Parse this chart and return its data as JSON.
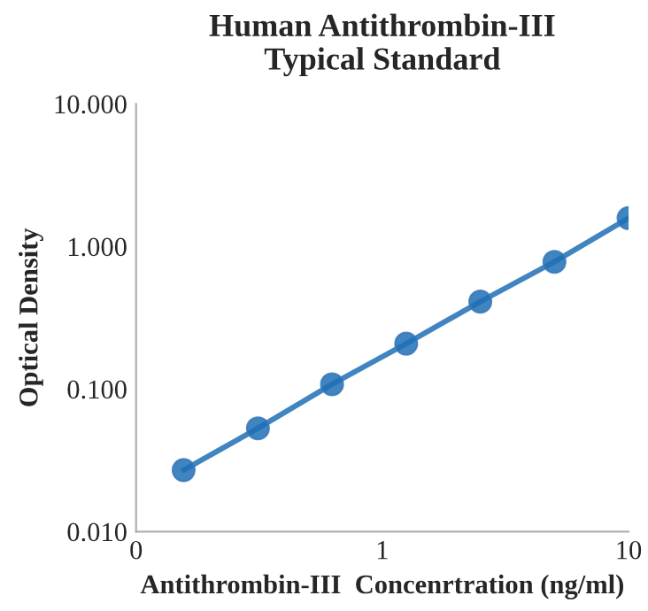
{
  "chart_data": {
    "type": "line",
    "title": "Human Antithrombin-III\nTypical Standard",
    "xlabel": "Antithrombin-III  Concenrtration (ng/ml)",
    "ylabel": "Optical Density",
    "x": [
      0.156,
      0.3125,
      0.625,
      1.25,
      2.5,
      5,
      10
    ],
    "series": [
      {
        "color": "#1f6fb5",
        "values": [
          0.027,
          0.053,
          0.108,
          0.208,
          0.41,
          0.78,
          1.58
        ]
      }
    ],
    "log": "xy",
    "xlim": [
      0.1,
      10
    ],
    "ylim": [
      0.01,
      10
    ],
    "xticks": [
      {
        "value": 0.1,
        "label": "0"
      },
      1,
      10
    ],
    "yticks": [
      {
        "value": 0.01,
        "label": "0.010"
      },
      {
        "value": 0.1,
        "label": "0.100"
      },
      {
        "value": 1,
        "label": "1.000"
      },
      {
        "value": 10,
        "label": "10.000"
      }
    ],
    "marker": "circle",
    "line_style": "solid",
    "grid": false,
    "legend": false
  }
}
